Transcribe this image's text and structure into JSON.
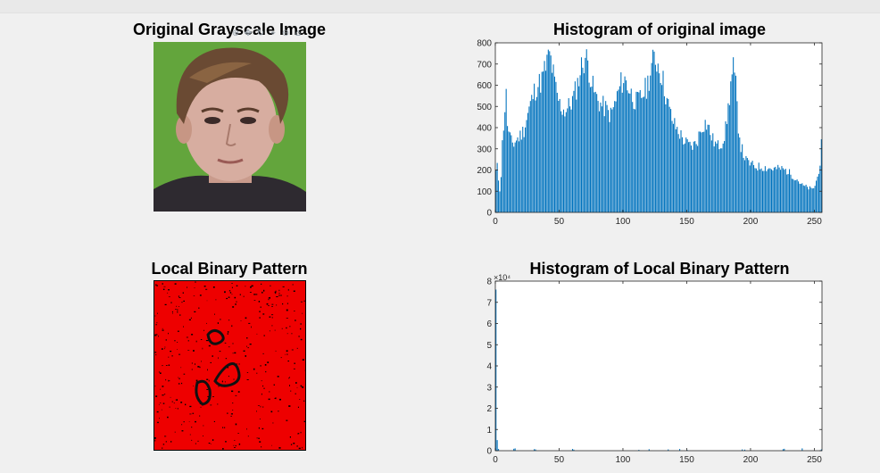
{
  "figure": {
    "toolbar_icons": [
      "zoom-in-icon",
      "pan-icon",
      "rotate-icon",
      "data-cursor-icon",
      "zoom-out-icon",
      "home-icon"
    ]
  },
  "panels": {
    "original_image": {
      "title": "Original Grayscale Image"
    },
    "lbp_image": {
      "title": "Local Binary Pattern"
    }
  },
  "colors": {
    "bar": "#0072bd",
    "lbp_background": "#ee0000",
    "face_background": "#5e9e3a"
  },
  "chart_data": [
    {
      "type": "bar",
      "title": "Histogram of original image",
      "xlabel": "",
      "ylabel": "",
      "xlim": [
        0,
        256
      ],
      "ylim": [
        0,
        800
      ],
      "xticks": [
        0,
        50,
        100,
        150,
        200,
        250
      ],
      "yticks": [
        0,
        100,
        200,
        300,
        400,
        500,
        600,
        700,
        800
      ],
      "grid": false,
      "keypoints": [
        [
          0,
          200
        ],
        [
          1,
          220
        ],
        [
          2,
          160
        ],
        [
          3,
          110
        ],
        [
          4,
          180
        ],
        [
          5,
          330
        ],
        [
          6,
          420
        ],
        [
          7,
          500
        ],
        [
          8,
          560
        ],
        [
          9,
          430
        ],
        [
          10,
          380
        ],
        [
          12,
          340
        ],
        [
          14,
          330
        ],
        [
          16,
          350
        ],
        [
          18,
          360
        ],
        [
          20,
          380
        ],
        [
          22,
          400
        ],
        [
          24,
          450
        ],
        [
          26,
          500
        ],
        [
          28,
          540
        ],
        [
          30,
          580
        ],
        [
          32,
          610
        ],
        [
          34,
          620
        ],
        [
          36,
          640
        ],
        [
          38,
          680
        ],
        [
          40,
          720
        ],
        [
          42,
          760
        ],
        [
          44,
          700
        ],
        [
          46,
          620
        ],
        [
          48,
          560
        ],
        [
          50,
          520
        ],
        [
          52,
          500
        ],
        [
          54,
          490
        ],
        [
          56,
          500
        ],
        [
          58,
          520
        ],
        [
          60,
          540
        ],
        [
          62,
          580
        ],
        [
          64,
          620
        ],
        [
          66,
          680
        ],
        [
          68,
          720
        ],
        [
          70,
          750
        ],
        [
          72,
          720
        ],
        [
          74,
          660
        ],
        [
          76,
          600
        ],
        [
          78,
          560
        ],
        [
          80,
          540
        ],
        [
          82,
          520
        ],
        [
          84,
          510
        ],
        [
          86,
          500
        ],
        [
          88,
          480
        ],
        [
          90,
          470
        ],
        [
          92,
          500
        ],
        [
          94,
          540
        ],
        [
          96,
          580
        ],
        [
          98,
          620
        ],
        [
          100,
          640
        ],
        [
          102,
          630
        ],
        [
          104,
          600
        ],
        [
          106,
          570
        ],
        [
          108,
          550
        ],
        [
          110,
          530
        ],
        [
          112,
          540
        ],
        [
          114,
          560
        ],
        [
          116,
          580
        ],
        [
          118,
          600
        ],
        [
          120,
          650
        ],
        [
          122,
          700
        ],
        [
          124,
          740
        ],
        [
          126,
          730
        ],
        [
          128,
          700
        ],
        [
          130,
          660
        ],
        [
          132,
          600
        ],
        [
          134,
          540
        ],
        [
          136,
          490
        ],
        [
          138,
          450
        ],
        [
          140,
          420
        ],
        [
          142,
          400
        ],
        [
          144,
          380
        ],
        [
          146,
          360
        ],
        [
          148,
          340
        ],
        [
          150,
          330
        ],
        [
          152,
          320
        ],
        [
          154,
          320
        ],
        [
          156,
          330
        ],
        [
          158,
          350
        ],
        [
          160,
          390
        ],
        [
          162,
          420
        ],
        [
          164,
          430
        ],
        [
          166,
          420
        ],
        [
          168,
          380
        ],
        [
          170,
          350
        ],
        [
          172,
          330
        ],
        [
          174,
          320
        ],
        [
          176,
          330
        ],
        [
          178,
          350
        ],
        [
          180,
          400
        ],
        [
          182,
          500
        ],
        [
          184,
          620
        ],
        [
          186,
          690
        ],
        [
          188,
          600
        ],
        [
          190,
          420
        ],
        [
          192,
          320
        ],
        [
          194,
          280
        ],
        [
          196,
          250
        ],
        [
          198,
          240
        ],
        [
          200,
          230
        ],
        [
          204,
          220
        ],
        [
          208,
          220
        ],
        [
          212,
          215
        ],
        [
          216,
          210
        ],
        [
          220,
          210
        ],
        [
          224,
          210
        ],
        [
          228,
          200
        ],
        [
          232,
          180
        ],
        [
          236,
          160
        ],
        [
          240,
          130
        ],
        [
          244,
          120
        ],
        [
          248,
          110
        ],
        [
          250,
          130
        ],
        [
          252,
          170
        ],
        [
          254,
          240
        ],
        [
          255,
          320
        ]
      ]
    },
    {
      "type": "bar",
      "title": "Histogram of Local Binary Pattern",
      "xlabel": "",
      "ylabel": "",
      "xlim": [
        0,
        256
      ],
      "ylim": [
        0,
        80000
      ],
      "yticks_display": [
        "0",
        "1",
        "2",
        "3",
        "4",
        "5",
        "6",
        "7",
        "8"
      ],
      "exponent_label": "×10⁴",
      "xticks": [
        0,
        50,
        100,
        150,
        200,
        250
      ],
      "grid": false,
      "bars": [
        [
          0,
          76000
        ],
        [
          1,
          5000
        ],
        [
          2,
          800
        ],
        [
          14,
          900
        ],
        [
          15,
          1100
        ],
        [
          30,
          700
        ],
        [
          31,
          600
        ],
        [
          60,
          800
        ],
        [
          61,
          500
        ],
        [
          112,
          400
        ],
        [
          120,
          700
        ],
        [
          135,
          600
        ],
        [
          144,
          800
        ],
        [
          150,
          300
        ],
        [
          193,
          600
        ],
        [
          195,
          500
        ],
        [
          225,
          700
        ],
        [
          226,
          900
        ],
        [
          240,
          1100
        ],
        [
          255,
          600
        ]
      ]
    }
  ]
}
